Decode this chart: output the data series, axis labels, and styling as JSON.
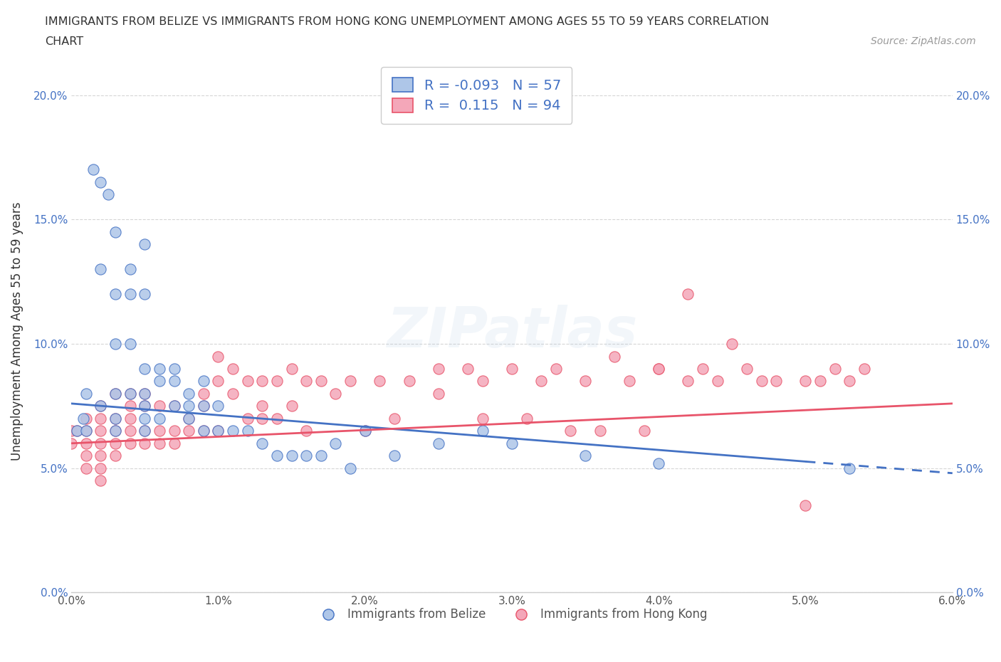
{
  "title_line1": "IMMIGRANTS FROM BELIZE VS IMMIGRANTS FROM HONG KONG UNEMPLOYMENT AMONG AGES 55 TO 59 YEARS CORRELATION",
  "title_line2": "CHART",
  "source": "Source: ZipAtlas.com",
  "ylabel": "Unemployment Among Ages 55 to 59 years",
  "xlim": [
    0.0,
    0.06
  ],
  "ylim": [
    0.0,
    0.21
  ],
  "xticks": [
    0.0,
    0.01,
    0.02,
    0.03,
    0.04,
    0.05,
    0.06
  ],
  "yticks": [
    0.0,
    0.05,
    0.1,
    0.15,
    0.2
  ],
  "xticklabels": [
    "0.0%",
    "1.0%",
    "2.0%",
    "3.0%",
    "4.0%",
    "5.0%",
    "6.0%"
  ],
  "yticklabels": [
    "0.0%",
    "5.0%",
    "10.0%",
    "15.0%",
    "20.0%"
  ],
  "belize_color": "#aec6e8",
  "hk_color": "#f4a7b9",
  "belize_line_color": "#4472c4",
  "hk_line_color": "#e8546a",
  "belize_R": -0.093,
  "belize_N": 57,
  "hk_R": 0.115,
  "hk_N": 94,
  "legend_label_belize": "Immigrants from Belize",
  "legend_label_hk": "Immigrants from Hong Kong",
  "belize_line_x0": 0.0,
  "belize_line_y0": 0.076,
  "belize_line_x1": 0.06,
  "belize_line_y1": 0.048,
  "hk_line_x0": 0.0,
  "hk_line_y0": 0.06,
  "hk_line_x1": 0.06,
  "hk_line_y1": 0.076,
  "belize_x": [
    0.0004,
    0.0008,
    0.001,
    0.001,
    0.0015,
    0.002,
    0.002,
    0.002,
    0.0025,
    0.003,
    0.003,
    0.003,
    0.003,
    0.003,
    0.003,
    0.004,
    0.004,
    0.004,
    0.004,
    0.005,
    0.005,
    0.005,
    0.005,
    0.005,
    0.005,
    0.005,
    0.006,
    0.006,
    0.006,
    0.007,
    0.007,
    0.007,
    0.008,
    0.008,
    0.008,
    0.009,
    0.009,
    0.009,
    0.01,
    0.01,
    0.011,
    0.012,
    0.013,
    0.014,
    0.015,
    0.016,
    0.017,
    0.018,
    0.019,
    0.02,
    0.022,
    0.025,
    0.028,
    0.03,
    0.035,
    0.04,
    0.053
  ],
  "belize_y": [
    0.065,
    0.07,
    0.065,
    0.08,
    0.17,
    0.165,
    0.13,
    0.075,
    0.16,
    0.145,
    0.12,
    0.1,
    0.08,
    0.07,
    0.065,
    0.13,
    0.12,
    0.1,
    0.08,
    0.14,
    0.12,
    0.09,
    0.08,
    0.075,
    0.07,
    0.065,
    0.09,
    0.085,
    0.07,
    0.09,
    0.085,
    0.075,
    0.08,
    0.075,
    0.07,
    0.085,
    0.075,
    0.065,
    0.075,
    0.065,
    0.065,
    0.065,
    0.06,
    0.055,
    0.055,
    0.055,
    0.055,
    0.06,
    0.05,
    0.065,
    0.055,
    0.06,
    0.065,
    0.06,
    0.055,
    0.052,
    0.05
  ],
  "hk_x": [
    0.0,
    0.0,
    0.0004,
    0.001,
    0.001,
    0.001,
    0.001,
    0.001,
    0.002,
    0.002,
    0.002,
    0.002,
    0.002,
    0.002,
    0.002,
    0.003,
    0.003,
    0.003,
    0.003,
    0.003,
    0.004,
    0.004,
    0.004,
    0.004,
    0.004,
    0.005,
    0.005,
    0.005,
    0.005,
    0.006,
    0.006,
    0.006,
    0.007,
    0.007,
    0.007,
    0.008,
    0.008,
    0.009,
    0.009,
    0.009,
    0.01,
    0.01,
    0.01,
    0.011,
    0.011,
    0.012,
    0.012,
    0.013,
    0.013,
    0.013,
    0.014,
    0.014,
    0.015,
    0.015,
    0.016,
    0.016,
    0.017,
    0.018,
    0.019,
    0.02,
    0.021,
    0.022,
    0.023,
    0.025,
    0.025,
    0.027,
    0.028,
    0.03,
    0.032,
    0.033,
    0.035,
    0.037,
    0.038,
    0.04,
    0.042,
    0.043,
    0.044,
    0.046,
    0.047,
    0.048,
    0.05,
    0.051,
    0.052,
    0.053,
    0.054,
    0.036,
    0.039,
    0.028,
    0.031,
    0.034,
    0.04,
    0.042,
    0.045,
    0.05
  ],
  "hk_y": [
    0.065,
    0.06,
    0.065,
    0.07,
    0.065,
    0.06,
    0.055,
    0.05,
    0.075,
    0.07,
    0.065,
    0.06,
    0.055,
    0.05,
    0.045,
    0.08,
    0.07,
    0.065,
    0.06,
    0.055,
    0.08,
    0.075,
    0.07,
    0.065,
    0.06,
    0.08,
    0.075,
    0.065,
    0.06,
    0.075,
    0.065,
    0.06,
    0.075,
    0.065,
    0.06,
    0.07,
    0.065,
    0.08,
    0.075,
    0.065,
    0.095,
    0.085,
    0.065,
    0.09,
    0.08,
    0.085,
    0.07,
    0.085,
    0.075,
    0.07,
    0.085,
    0.07,
    0.09,
    0.075,
    0.085,
    0.065,
    0.085,
    0.08,
    0.085,
    0.065,
    0.085,
    0.07,
    0.085,
    0.09,
    0.08,
    0.09,
    0.085,
    0.09,
    0.085,
    0.09,
    0.085,
    0.095,
    0.085,
    0.09,
    0.085,
    0.09,
    0.085,
    0.09,
    0.085,
    0.085,
    0.085,
    0.085,
    0.09,
    0.085,
    0.09,
    0.065,
    0.065,
    0.07,
    0.07,
    0.065,
    0.09,
    0.12,
    0.1,
    0.035
  ]
}
